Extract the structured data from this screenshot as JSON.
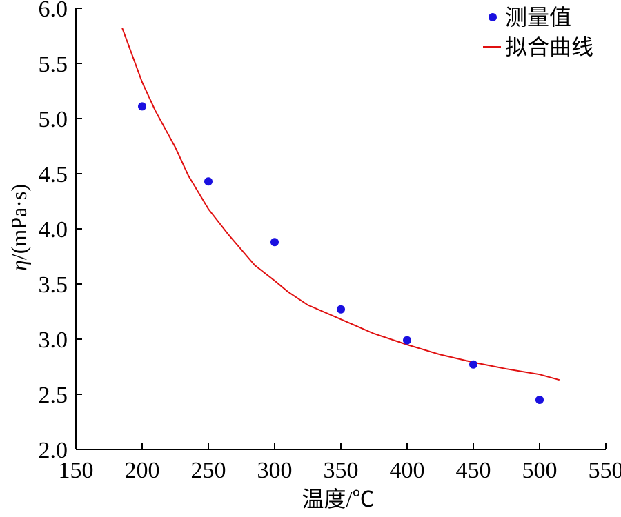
{
  "chart_data": {
    "type": "scatter",
    "title": "",
    "xlabel": "温度/℃",
    "ylabel_symbol": "η",
    "ylabel_unit": "/(mPa·s)",
    "xlim": [
      150,
      550
    ],
    "ylim": [
      2.0,
      6.0
    ],
    "x_ticks": [
      150,
      200,
      250,
      300,
      350,
      400,
      450,
      500,
      550
    ],
    "y_ticks": [
      2.0,
      2.5,
      3.0,
      3.5,
      4.0,
      4.5,
      5.0,
      5.5,
      6.0
    ],
    "y_tick_labels": [
      "2.0",
      "2.5",
      "3.0",
      "3.5",
      "4.0",
      "4.5",
      "5.0",
      "5.5",
      "6.0"
    ],
    "grid": false,
    "legend_position": "top-right",
    "series": [
      {
        "name": "测量值",
        "kind": "scatter",
        "color": "#1a10e0",
        "x": [
          200,
          250,
          300,
          350,
          400,
          450,
          500
        ],
        "y": [
          5.11,
          4.43,
          3.88,
          3.27,
          2.99,
          2.77,
          2.45
        ]
      },
      {
        "name": "拟合曲线",
        "kind": "line",
        "color": "#e01010",
        "x": [
          185,
          200,
          210,
          225,
          235,
          250,
          265,
          285,
          300,
          310,
          325,
          350,
          375,
          400,
          425,
          450,
          475,
          500,
          515
        ],
        "y": [
          5.82,
          5.33,
          5.07,
          4.74,
          4.48,
          4.18,
          3.95,
          3.67,
          3.53,
          3.43,
          3.31,
          3.18,
          3.05,
          2.95,
          2.86,
          2.79,
          2.73,
          2.68,
          2.63
        ]
      }
    ]
  }
}
